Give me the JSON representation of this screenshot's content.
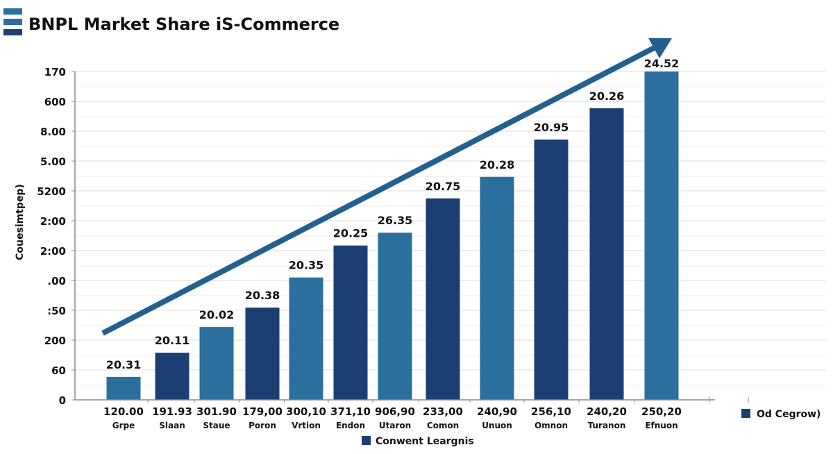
{
  "chart_data": {
    "type": "bar",
    "title": "BNPL Market Share iS-Commerce",
    "ylabel": "Couesimtpep)",
    "y_tick_labels": [
      "0",
      "60",
      "200",
      ":50",
      ".00",
      "2:00",
      "2:00",
      "5200",
      "5.00",
      "8.00",
      "600",
      "170"
    ],
    "ylim": [
      0,
      11
    ],
    "grid": true,
    "categories": [
      "Grpe",
      "Slaan",
      "Staue",
      "Poron",
      "Vrtion",
      "Endon",
      "Utaron",
      "Comon",
      "Unuon",
      "Omnon",
      "Turanon",
      "Efnuon"
    ],
    "x_values": [
      "120.00",
      "191.93",
      "301.90",
      "179,00",
      "300,10",
      "371,10",
      "906,90",
      "233,00",
      "240,90",
      "256,10",
      "240,20",
      "250,20"
    ],
    "data_labels": [
      "20.31",
      "20.11",
      "20.02",
      "20.38",
      "20.35",
      "20.25",
      "26.35",
      "20.75",
      "20.28",
      "20.95",
      "20.26",
      "24.52"
    ],
    "values": [
      0.77,
      1.58,
      2.44,
      3.09,
      4.1,
      5.17,
      5.6,
      6.75,
      7.47,
      8.72,
      9.77,
      11.0
    ],
    "bar_shades": [
      "light",
      "dark",
      "light",
      "dark",
      "light",
      "dark",
      "light",
      "dark",
      "light",
      "dark",
      "dark",
      "light"
    ],
    "trend_arrow": true,
    "legend": [
      {
        "label": "Conwent Leargnis",
        "color": "#1c3f73",
        "placement": "bottom-center"
      },
      {
        "label": "Od Cegrow)",
        "color": "#1c3f73",
        "placement": "bottom-right"
      }
    ],
    "colors": {
      "light": "#2a6f9e",
      "dark": "#1c3f73",
      "arrow": "#23608f",
      "grid": "#dddddd",
      "axis": "#888888"
    }
  }
}
